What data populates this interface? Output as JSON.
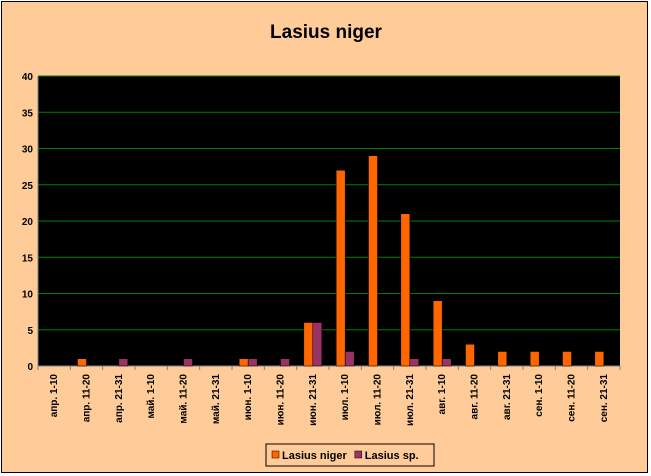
{
  "chart_data": {
    "type": "bar",
    "title": "Lasius niger",
    "xlabel": "",
    "ylabel": "",
    "ylim": [
      0,
      40
    ],
    "yticks": [
      0,
      5,
      10,
      15,
      20,
      25,
      30,
      35,
      40
    ],
    "grid": true,
    "legend_position": "bottom",
    "categories": [
      "апр. 1-10",
      "апр. 11-20",
      "апр. 21-31",
      "май. 1-10",
      "май. 11-20",
      "май. 21-31",
      "июн. 1-10",
      "июн. 11-20",
      "июн. 21-31",
      "июл. 1-10",
      "июл. 11-20",
      "июл. 21-31",
      "авг. 1-10",
      "авг. 11-20",
      "авг. 21-31",
      "сен. 1-10",
      "сен. 11-20",
      "сен. 21-31"
    ],
    "series": [
      {
        "name": "Lasius niger",
        "color": "#FF6600",
        "values": [
          0,
          1,
          0,
          0,
          0,
          0,
          1,
          0,
          6,
          27,
          29,
          21,
          9,
          3,
          2,
          2,
          2,
          2
        ]
      },
      {
        "name": "Lasius sp.",
        "color": "#993366",
        "values": [
          0,
          0,
          1,
          0,
          1,
          0,
          1,
          1,
          6,
          2,
          0,
          1,
          1,
          0,
          0,
          0,
          0,
          0
        ]
      }
    ],
    "colors": {
      "chart_background": "#FFCC99",
      "plot_background": "#000000",
      "gridline": "#008000"
    }
  }
}
